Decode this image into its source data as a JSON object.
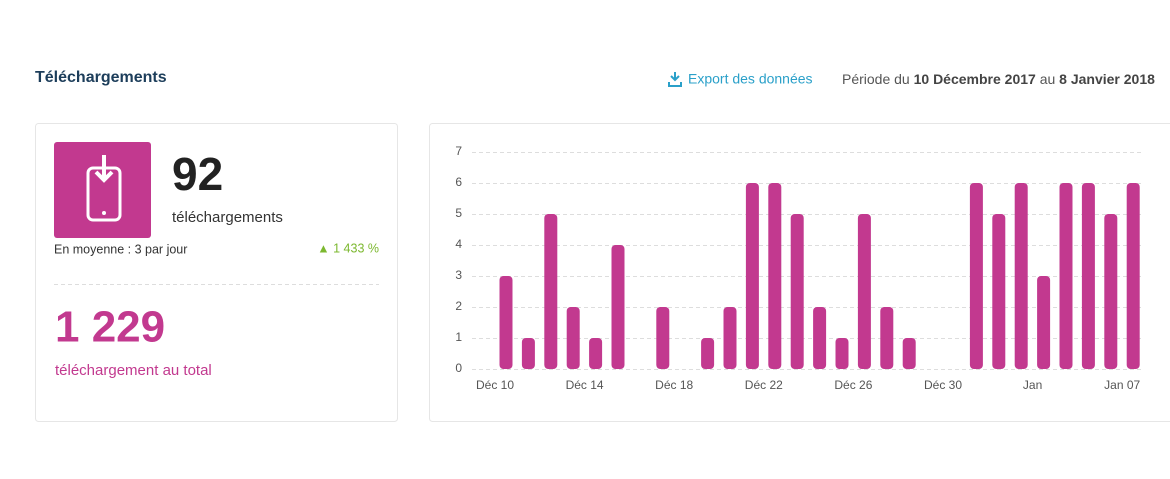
{
  "header": {
    "title": "Téléchargements",
    "export": "Export des données",
    "period": [
      "Période du ",
      "10 Décembre 2017",
      " au ",
      "8 Janvier 2018"
    ]
  },
  "stats": {
    "count": "92",
    "count_label": "téléchargements",
    "average": "En moyenne : 3 par jour",
    "change": "▲ 1 433 %",
    "total": "1 229",
    "total_label": "téléchargement au total"
  },
  "chart_data": {
    "type": "bar",
    "color": "#c2398f",
    "grid": true,
    "categories": [
      "Déc 10",
      null,
      null,
      null,
      "Déc 14",
      null,
      null,
      null,
      "Déc 18",
      null,
      null,
      null,
      "Déc 22",
      null,
      null,
      null,
      "Déc 26",
      null,
      null,
      null,
      "Déc 30",
      null,
      null,
      null,
      "Jan",
      null,
      null,
      null,
      "Jan 07"
    ],
    "values": [
      3,
      1,
      5,
      2,
      1,
      4,
      0,
      2,
      0,
      1,
      2,
      6,
      6,
      5,
      2,
      1,
      5,
      2,
      1,
      0,
      0,
      6,
      5,
      6,
      3,
      6,
      6,
      5,
      6
    ],
    "ylim": [
      0,
      7
    ],
    "yticks": [
      0,
      1,
      2,
      3,
      4,
      5,
      6,
      7
    ]
  }
}
